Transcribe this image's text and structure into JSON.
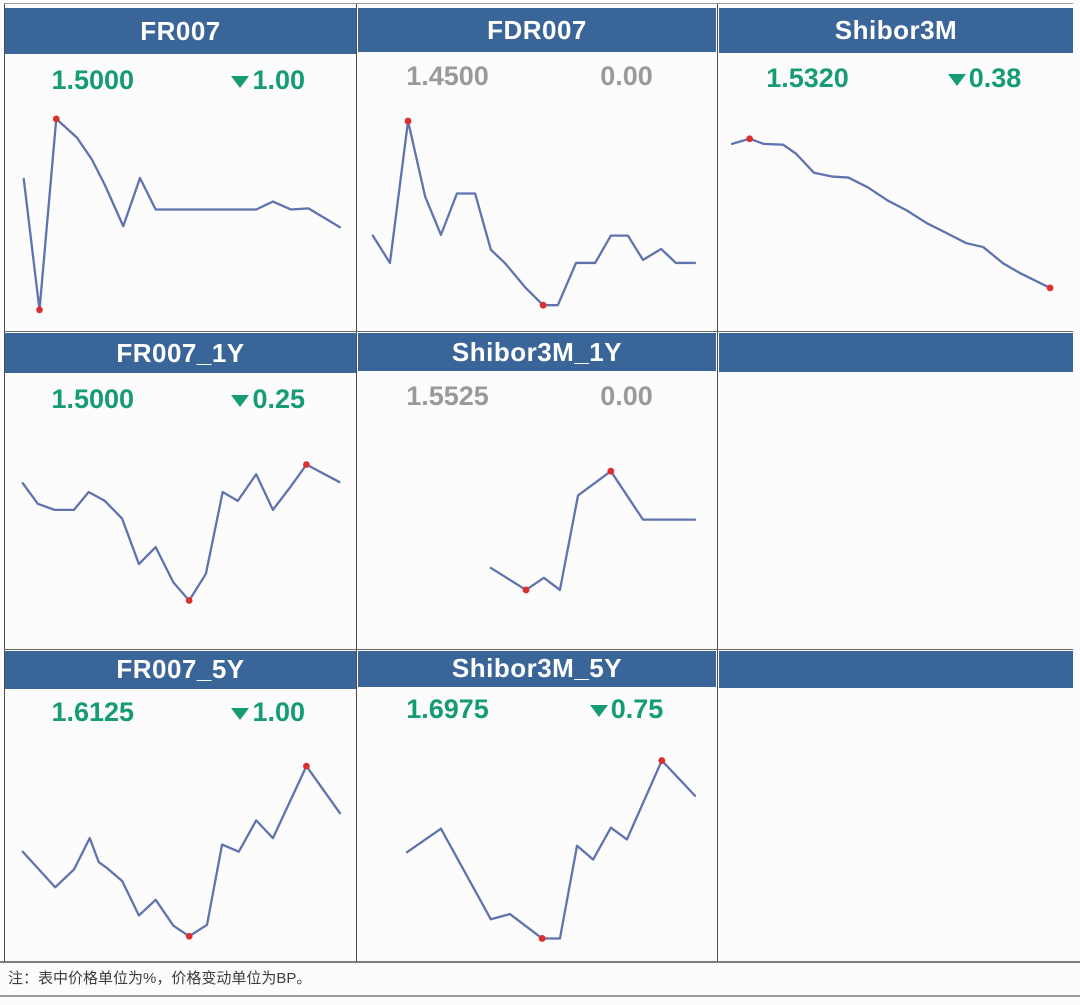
{
  "colors": {
    "header_blue": "#3a6598",
    "down_green": "#169c75",
    "neutral_gray": "#9a9a9a",
    "line_blue": "#6173ae",
    "marker_red": "#dd2f2e"
  },
  "note": {
    "text": "注：表中价格单位为%，价格变动单位为BP。"
  },
  "chart_data": [
    {
      "type": "line",
      "row": 1,
      "col": 1,
      "title": "FR007",
      "price": "1.5000",
      "change_bp": "1.00",
      "change_dir": "down",
      "points": [
        [
          3.2,
          33.5
        ],
        [
          7.9,
          95.3
        ],
        [
          12.9,
          5.1
        ],
        [
          19.1,
          14.0
        ],
        [
          23.5,
          24.2
        ],
        [
          27.4,
          36.3
        ],
        [
          32.9,
          55.8
        ],
        [
          37.9,
          33.0
        ],
        [
          42.6,
          47.9
        ],
        [
          72.6,
          47.9
        ],
        [
          77.6,
          44.2
        ],
        [
          82.9,
          47.9
        ],
        [
          88.2,
          47.4
        ],
        [
          97.6,
          56.3
        ]
      ],
      "markers": [
        1,
        2
      ]
    },
    {
      "type": "line",
      "row": 1,
      "col": 2,
      "title": "FDR007",
      "price": "1.4500",
      "change_bp": "0.00",
      "change_dir": "none",
      "points": [
        [
          2.0,
          60.9
        ],
        [
          7.0,
          73.5
        ],
        [
          12.3,
          7.9
        ],
        [
          17.3,
          42.8
        ],
        [
          21.9,
          60.5
        ],
        [
          26.6,
          41.4
        ],
        [
          31.9,
          41.4
        ],
        [
          36.5,
          67.4
        ],
        [
          40.6,
          73.5
        ],
        [
          46.5,
          84.7
        ],
        [
          51.8,
          93.0
        ],
        [
          56.1,
          93.0
        ],
        [
          61.4,
          73.5
        ],
        [
          67.0,
          73.5
        ],
        [
          71.6,
          60.9
        ],
        [
          76.6,
          60.9
        ],
        [
          81.0,
          72.1
        ],
        [
          86.3,
          67.0
        ],
        [
          90.6,
          73.5
        ],
        [
          96.2,
          73.5
        ]
      ],
      "markers": [
        2,
        10
      ]
    },
    {
      "type": "line",
      "row": 1,
      "col": 3,
      "title": "Shibor3M",
      "price": "1.5320",
      "change_bp": "0.38",
      "change_dir": "down",
      "points": [
        [
          1.5,
          17.7
        ],
        [
          6.7,
          15.3
        ],
        [
          10.8,
          17.7
        ],
        [
          16.6,
          18.1
        ],
        [
          20.4,
          22.3
        ],
        [
          25.7,
          31.2
        ],
        [
          31.2,
          33.0
        ],
        [
          35.9,
          33.5
        ],
        [
          41.7,
          38.1
        ],
        [
          47.5,
          44.2
        ],
        [
          53.1,
          48.8
        ],
        [
          59.2,
          54.9
        ],
        [
          65.0,
          59.5
        ],
        [
          70.8,
          64.2
        ],
        [
          75.8,
          66.0
        ],
        [
          81.6,
          73.5
        ],
        [
          86.6,
          78.1
        ],
        [
          95.6,
          85.1
        ]
      ],
      "markers": [
        1,
        17
      ]
    },
    {
      "type": "line",
      "row": 2,
      "col": 1,
      "title": "FR007_1Y",
      "price": "1.5000",
      "change_bp": "0.25",
      "change_dir": "down",
      "points": [
        [
          2.9,
          26.5
        ],
        [
          7.4,
          36.3
        ],
        [
          12.4,
          39.1
        ],
        [
          18.2,
          39.1
        ],
        [
          22.6,
          30.7
        ],
        [
          27.4,
          34.9
        ],
        [
          32.6,
          43.3
        ],
        [
          37.6,
          64.7
        ],
        [
          42.6,
          56.7
        ],
        [
          47.9,
          73.5
        ],
        [
          52.6,
          81.9
        ],
        [
          57.6,
          69.3
        ],
        [
          62.6,
          30.7
        ],
        [
          67.1,
          34.9
        ],
        [
          72.6,
          22.3
        ],
        [
          77.6,
          39.1
        ],
        [
          82.6,
          28.8
        ],
        [
          87.6,
          17.7
        ],
        [
          97.4,
          26.0
        ]
      ],
      "markers": [
        10,
        17
      ]
    },
    {
      "type": "line",
      "row": 2,
      "col": 2,
      "title": "Shibor3M_1Y",
      "price": "1.5525",
      "change_bp": "0.00",
      "change_dir": "none",
      "points": [
        [
          36.5,
          67.0
        ],
        [
          46.8,
          77.2
        ],
        [
          52.0,
          71.6
        ],
        [
          56.7,
          77.2
        ],
        [
          62.0,
          33.5
        ],
        [
          71.6,
          22.3
        ],
        [
          81.0,
          44.7
        ],
        [
          96.2,
          44.7
        ]
      ],
      "markers": [
        1,
        5
      ]
    },
    {
      "type": "none",
      "row": 2,
      "col": 3,
      "title": "",
      "price": "",
      "change_bp": "",
      "change_dir": "none",
      "points": [],
      "markers": []
    },
    {
      "type": "line",
      "row": 3,
      "col": 1,
      "title": "FR007_5Y",
      "price": "1.6125",
      "change_bp": "1.00",
      "change_dir": "down",
      "points": [
        [
          2.9,
          53.2
        ],
        [
          12.6,
          70.0
        ],
        [
          18.2,
          61.6
        ],
        [
          22.9,
          46.8
        ],
        [
          25.6,
          58.1
        ],
        [
          28.2,
          61.1
        ],
        [
          32.6,
          67.0
        ],
        [
          37.6,
          83.3
        ],
        [
          42.6,
          75.9
        ],
        [
          47.9,
          88.2
        ],
        [
          52.6,
          93.1
        ],
        [
          57.9,
          87.7
        ],
        [
          62.4,
          49.8
        ],
        [
          67.4,
          53.2
        ],
        [
          72.6,
          38.4
        ],
        [
          77.6,
          46.8
        ],
        [
          87.6,
          12.8
        ],
        [
          97.6,
          35.0
        ]
      ],
      "markers": [
        10,
        16
      ]
    },
    {
      "type": "line",
      "row": 3,
      "col": 2,
      "title": "Shibor3M_5Y",
      "price": "1.6975",
      "change_bp": "0.75",
      "change_dir": "down",
      "points": [
        [
          12.0,
          54.2
        ],
        [
          21.9,
          43.3
        ],
        [
          36.5,
          85.2
        ],
        [
          42.1,
          82.8
        ],
        [
          51.5,
          94.1
        ],
        [
          56.7,
          94.1
        ],
        [
          61.7,
          51.2
        ],
        [
          66.4,
          57.6
        ],
        [
          71.6,
          42.9
        ],
        [
          76.3,
          48.3
        ],
        [
          86.5,
          11.8
        ],
        [
          96.2,
          28.1
        ]
      ],
      "markers": [
        4,
        10
      ]
    },
    {
      "type": "none",
      "row": 3,
      "col": 3,
      "title": "",
      "price": "",
      "change_bp": "",
      "change_dir": "none",
      "points": [],
      "markers": []
    }
  ]
}
